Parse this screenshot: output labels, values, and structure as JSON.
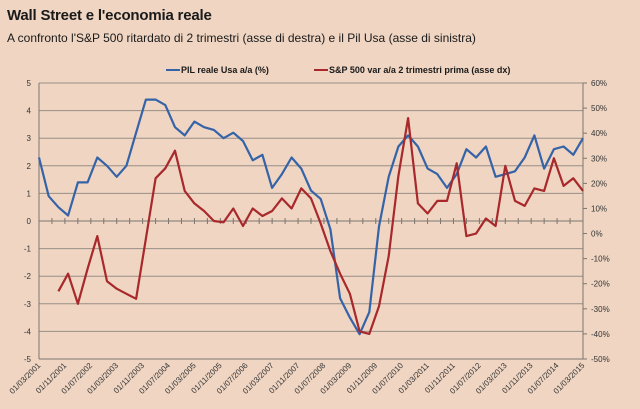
{
  "header": {
    "title": "Wall Street e l'economia reale",
    "subtitle": "A confronto l'S&P 500 ritardato di 2 trimestri (asse di destra) e il Pil Usa (asse di sinistra)"
  },
  "colors": {
    "background": "#efd5c2",
    "pil": "#3563a8",
    "sp500": "#a8282b",
    "grid": "#9a8e86"
  },
  "chart_data": {
    "type": "line",
    "title": "Wall Street e l'economia reale",
    "subtitle": "A confronto l'S&P 500 ritardato di 2 trimestri (asse di destra) e il Pil Usa (asse di sinistra)",
    "legend_position": "top",
    "grid": true,
    "x_frequency": "quarterly",
    "x_start": "01/03/2001",
    "x_end": "01/03/2015",
    "x_tick_labels": [
      "01/03/2001",
      "01/11/2001",
      "01/07/2002",
      "01/03/2003",
      "01/11/2003",
      "01/07/2004",
      "01/03/2005",
      "01/11/2005",
      "01/07/2006",
      "01/03/2007",
      "01/11/2007",
      "01/07/2008",
      "01/03/2009",
      "01/11/2009",
      "01/07/2010",
      "01/03/2011",
      "01/11/2011",
      "01/07/2012",
      "01/03/2013",
      "01/11/2013",
      "01/07/2014",
      "01/03/2015"
    ],
    "y_left": {
      "range": [
        -5,
        5
      ],
      "ticks": [
        "5",
        "4",
        "3",
        "2",
        "1",
        "0",
        "-1",
        "-2",
        "-3",
        "-4",
        "-5"
      ]
    },
    "y_right": {
      "range": [
        -50,
        60
      ],
      "ticks": [
        "60%",
        "50%",
        "40%",
        "30%",
        "20%",
        "10%",
        "0%",
        "-10%",
        "-20%",
        "-30%",
        "-40%",
        "-50%"
      ]
    },
    "series": [
      {
        "name": "PIL reale Usa a/a (%)",
        "axis": "left",
        "start_index": 0,
        "values": [
          2.3,
          0.9,
          0.5,
          0.2,
          1.4,
          1.4,
          2.3,
          2.0,
          1.6,
          2.0,
          3.2,
          4.4,
          4.4,
          4.2,
          3.4,
          3.1,
          3.6,
          3.4,
          3.3,
          3.0,
          3.2,
          2.9,
          2.2,
          2.4,
          1.2,
          1.7,
          2.3,
          1.9,
          1.1,
          0.8,
          -0.3,
          -2.8,
          -3.5,
          -4.1,
          -3.3,
          -0.2,
          1.6,
          2.7,
          3.1,
          2.7,
          1.9,
          1.7,
          1.2,
          1.7,
          2.6,
          2.3,
          2.7,
          1.6,
          1.7,
          1.8,
          2.3,
          3.1,
          1.9,
          2.6,
          2.7,
          2.4,
          3.0
        ]
      },
      {
        "name": "S&P 500 var a/a 2 trimestri prima (asse dx)",
        "axis": "right",
        "start_index": 2,
        "values": [
          -23,
          -16,
          -28,
          -14,
          -1,
          -19,
          -22,
          -24,
          -26,
          -2,
          22,
          26,
          33,
          17,
          12,
          9,
          5,
          4.5,
          10,
          3,
          10,
          7,
          9,
          14,
          10,
          18,
          14,
          4,
          -7,
          -16,
          -24,
          -39,
          -40,
          -29,
          -9,
          23,
          46,
          12,
          8,
          13,
          13,
          28,
          -1,
          0,
          6,
          3,
          27,
          13,
          11,
          18,
          17,
          30,
          19,
          22,
          17
        ]
      }
    ]
  }
}
